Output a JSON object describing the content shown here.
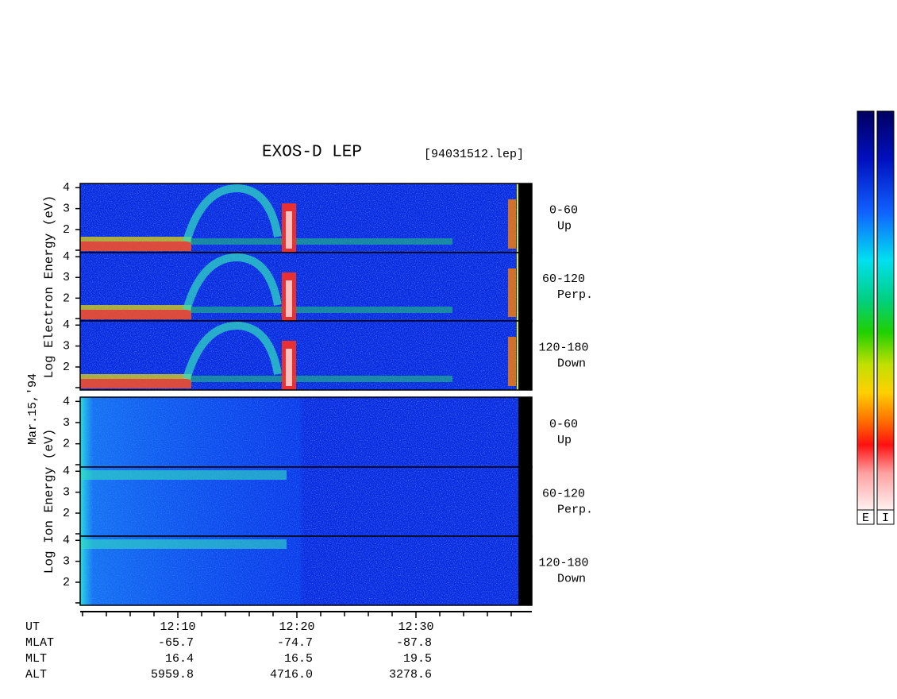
{
  "chart_data": {
    "type": "spectrogram",
    "title": "EXOS-D LEP",
    "subtitle": "[94031512.lep]",
    "date_label": "Mar.15,'94",
    "xlim": [
      "12:02",
      "12:39"
    ],
    "xticks": [
      "12:10",
      "12:20",
      "12:30"
    ],
    "xminorticks": [
      "12:02",
      "12:04",
      "12:06",
      "12:08",
      "12:12",
      "12:14",
      "12:16",
      "12:18",
      "12:22",
      "12:24",
      "12:26",
      "12:28",
      "12:32",
      "12:34",
      "12:36",
      "12:38"
    ],
    "ylim": [
      0.9,
      4.2
    ],
    "yticks": [
      2,
      3,
      4
    ],
    "groups": [
      {
        "ylabel": "Log Electron Energy (eV)",
        "panels": [
          {
            "angle": "0-60",
            "direction": "Up"
          },
          {
            "angle": "60-120",
            "direction": "Perp."
          },
          {
            "angle": "120-180",
            "direction": "Down"
          }
        ]
      },
      {
        "ylabel": "Log Ion Energy (eV)",
        "panels": [
          {
            "angle": "0-60",
            "direction": "Up"
          },
          {
            "angle": "60-120",
            "direction": "Perp."
          },
          {
            "angle": "120-180",
            "direction": "Down"
          }
        ]
      }
    ],
    "colorbar_labels": [
      "E",
      "I"
    ]
  },
  "ephemeris": {
    "rows": [
      {
        "label": "UT"
      },
      {
        "label": "MLAT",
        "values": [
          "-65.7",
          "-74.7",
          "-87.8"
        ]
      },
      {
        "label": "MLT",
        "values": [
          "16.4",
          "16.5",
          "19.5"
        ]
      },
      {
        "label": "ALT",
        "values": [
          "5959.8",
          "4716.0",
          "3278.6"
        ]
      }
    ]
  }
}
